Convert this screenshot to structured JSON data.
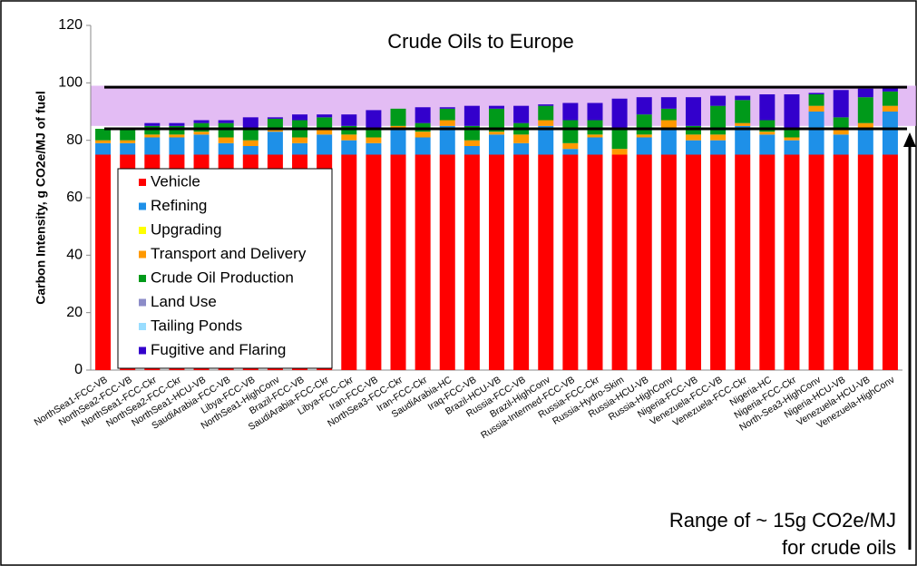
{
  "chart_data": {
    "type": "stacked_bar",
    "title": "Crude Oils to Europe",
    "y_label": "Carbon Intensity, g CO2e/MJ of fuel",
    "annotation": [
      "Range of ~ 15g CO2e/MJ",
      "for crude oils"
    ],
    "band": [
      85,
      99
    ],
    "band_color": "#d9a6f0",
    "reference_lines": [
      84,
      98.5
    ],
    "ylim": [
      0,
      120
    ],
    "yticks": [
      0,
      20,
      40,
      60,
      80,
      100,
      120
    ],
    "categories": [
      "NorthSea1-FCC-VB",
      "NorthSea2-FCC-VB",
      "NorthSea1-FCC-Ckr",
      "NorthSea2-FCC-Ckr",
      "NorthSea1-HCU-VB",
      "SaudiArabia-FCC-VB",
      "Libya-FCC-VB",
      "NorthSea1-HighConv",
      "Brazil-FCC-VB",
      "SaudiArabia-FCC-Ckr",
      "Libya-FCC-Ckr",
      "Iran-FCC-VB",
      "NorthSea3-FCC-Ckr",
      "Iran-FCC-Ckr",
      "SaudiArabia-HC",
      "Iraq-FCC-VB",
      "Brazil-HCU-VB",
      "Russia-FCC-VB",
      "Brazil-HighConv",
      "Russia-Intermed-FCC-VB",
      "Russia-FCC-Ckr",
      "Russia-Hydro-Skim",
      "Russia-HCU-VB",
      "Russia-HighConv",
      "Nigeria-FCC-VB",
      "Venezuela-FCC-VB",
      "Venezuela-FCC-Ckr",
      "Nigeria-HC",
      "Nigeria-FCC-Ckr",
      "North-Sea3-HighConv",
      "Nigeria-HCU-VB",
      "Venezuela-HCU-VB",
      "Venezuela-HighConv"
    ],
    "series": [
      {
        "name": "Vehicle",
        "color": "#ff0000",
        "values": [
          75,
          75,
          75,
          75,
          75,
          75,
          75,
          75,
          75,
          75,
          75,
          75,
          75,
          75,
          75,
          75,
          75,
          75,
          75,
          75,
          75,
          75,
          75,
          75,
          75,
          75,
          75,
          75,
          75,
          75,
          75,
          75,
          75
        ]
      },
      {
        "name": "Refining",
        "color": "#1e90e8",
        "values": [
          4,
          4,
          6,
          6,
          7,
          4,
          3,
          8,
          4,
          7,
          5,
          4,
          9,
          6,
          10,
          3,
          7,
          4,
          10,
          2,
          6,
          0,
          6,
          9,
          5,
          5,
          10,
          7,
          5,
          15,
          7,
          9,
          15
        ]
      },
      {
        "name": "Upgrading",
        "color": "#ffff00",
        "values": [
          0,
          0,
          0,
          0,
          0,
          0,
          0,
          0,
          0,
          0,
          0,
          0,
          0,
          0,
          0,
          0,
          0,
          0,
          0,
          0,
          0,
          0,
          0,
          0,
          0,
          0,
          0,
          0,
          0,
          0,
          0,
          0,
          0
        ]
      },
      {
        "name": "Transport and Delivery",
        "color": "#ff9900",
        "values": [
          1,
          1,
          1,
          1,
          1,
          2,
          2,
          0.5,
          2,
          2,
          2,
          2,
          1,
          2,
          2,
          2,
          1,
          3,
          2,
          2,
          1,
          2,
          1,
          3,
          2,
          2,
          1,
          1,
          1,
          2,
          2,
          2,
          2
        ]
      },
      {
        "name": "Crude Oil Production",
        "color": "#009a1a",
        "values": [
          4,
          4,
          3,
          3,
          3,
          5,
          4,
          4,
          6,
          4,
          3,
          3,
          6,
          3,
          4,
          5,
          8,
          4,
          5,
          8,
          5,
          7,
          7,
          4,
          3,
          10,
          8,
          4,
          3,
          4,
          4,
          9,
          5
        ]
      },
      {
        "name": "Land Use",
        "color": "#8c8cc8",
        "values": [
          0,
          0,
          0,
          0,
          0,
          0,
          0,
          0,
          0,
          0,
          0,
          0,
          0,
          0,
          0,
          0,
          0,
          0,
          0,
          0,
          0,
          0,
          0,
          0,
          0,
          0,
          0,
          0,
          0,
          0,
          0,
          0,
          0
        ]
      },
      {
        "name": "Tailing Ponds",
        "color": "#99ddff",
        "values": [
          0,
          0,
          0,
          0,
          0,
          0,
          0,
          0,
          0,
          0,
          0,
          0,
          0,
          0,
          0,
          0,
          0,
          0,
          0,
          0,
          0,
          0,
          0,
          0,
          0,
          0,
          0,
          0,
          0,
          0,
          0,
          0,
          0
        ]
      },
      {
        "name": "Fugitive and Flaring",
        "color": "#3300cc",
        "values": [
          0,
          0,
          1,
          1,
          1,
          1,
          4,
          0.5,
          2,
          1,
          4,
          6.5,
          0,
          5.5,
          0.5,
          7,
          1,
          6,
          0.5,
          6,
          6,
          10.5,
          6,
          4,
          10,
          3.5,
          1.5,
          9,
          12,
          0.5,
          9.5,
          3,
          1.5
        ]
      }
    ]
  }
}
